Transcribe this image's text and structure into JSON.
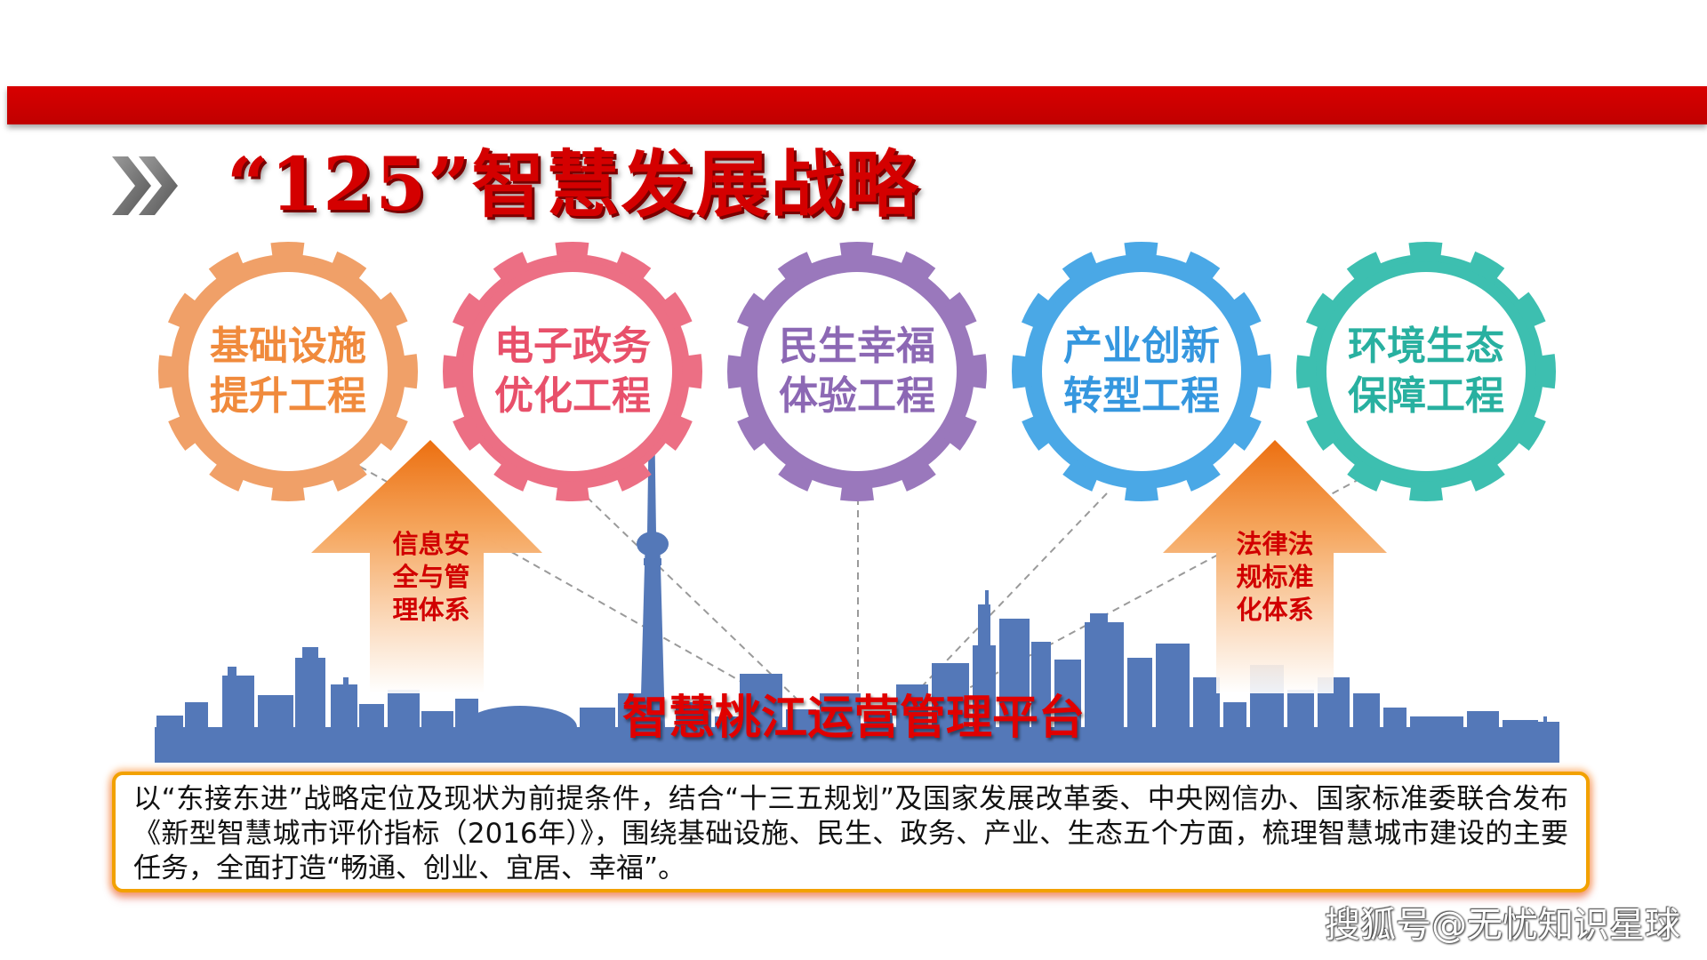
{
  "header": {
    "title": "“125”智慧发展战略"
  },
  "pillars": [
    {
      "line1": "基础设施",
      "line2": "提升工程",
      "color": "#f0a068",
      "text_color": "#f08a3c"
    },
    {
      "line1": "电子政务",
      "line2": "优化工程",
      "color": "#ec6f84",
      "text_color": "#e8506a"
    },
    {
      "line1": "民生幸福",
      "line2": "体验工程",
      "color": "#9a78bc",
      "text_color": "#8c68b4"
    },
    {
      "line1": "产业创新",
      "line2": "转型工程",
      "color": "#4aa8e6",
      "text_color": "#3597df"
    },
    {
      "line1": "环境生态",
      "line2": "保障工程",
      "color": "#3dbfb0",
      "text_color": "#28b0a0"
    }
  ],
  "support_arrows": {
    "left": {
      "line1": "信息安",
      "line2": "全与管",
      "line3": "理体系"
    },
    "right": {
      "line1": "法律法",
      "line2": "规标准",
      "line3": "化体系"
    }
  },
  "platform": {
    "title": "智慧桃江运营管理平台"
  },
  "description": {
    "text": "以“东接东进”战略定位及现状为前提条件，结合“十三五规划”及国家发展改革委、中央网信办、国家标准委联合发布《新型智慧城市评价指标（2016年）》，围绕基础设施、民生、政务、产业、生态五个方面，梳理智慧城市建设的主要任务，全面打造“畅通、创业、宜居、幸福”。"
  },
  "watermark": {
    "text": "搜狐号@无忧知识星球"
  },
  "colors": {
    "banner_red": "#cc0000",
    "skyline_blue": "#5478b8",
    "arrow_orange": "#ef7f1a",
    "box_border": "#f2a100"
  }
}
